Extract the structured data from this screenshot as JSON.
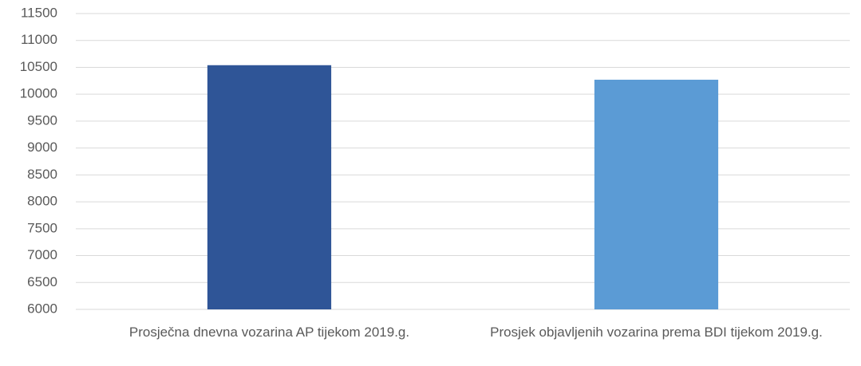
{
  "chart_data": {
    "type": "bar",
    "categories": [
      "Prosječna dnevna vozarina AP tijekom 2019.g.",
      "Prosjek objavljenih vozarina prema BDI tijekom 2019.g."
    ],
    "values": [
      10540,
      10270
    ],
    "colors": [
      "#2f5597",
      "#5b9bd5"
    ],
    "ylim": [
      6000,
      11500
    ],
    "yticks": [
      6000,
      6500,
      7000,
      7500,
      8000,
      8500,
      9000,
      9500,
      10000,
      10500,
      11000,
      11500
    ],
    "grid": true
  }
}
